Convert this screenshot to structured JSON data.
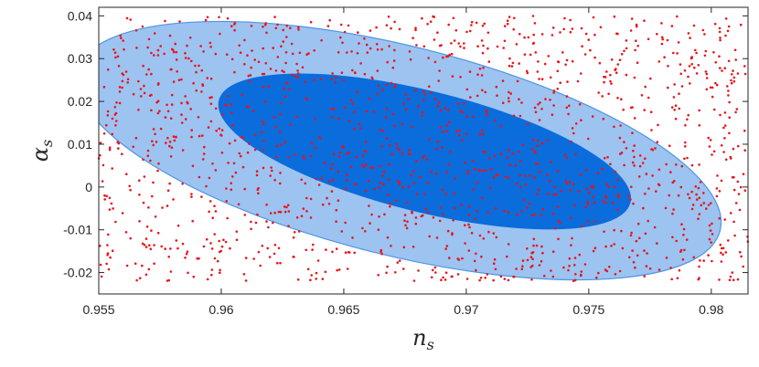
{
  "chart_data": {
    "type": "scatter",
    "title": "",
    "xlabel": "n_s",
    "ylabel": "α_s",
    "xlabel_main": "n",
    "xlabel_sub": "s",
    "ylabel_main": "α",
    "ylabel_sub": "s",
    "xlim": [
      0.955,
      0.9815
    ],
    "ylim": [
      -0.025,
      0.042
    ],
    "xticks": [
      0.955,
      0.96,
      0.965,
      0.97,
      0.975,
      0.98
    ],
    "xtick_labels": [
      "0.955",
      "0.96",
      "0.965",
      "0.97",
      "0.975",
      "0.98"
    ],
    "yticks": [
      -0.02,
      -0.01,
      0,
      0.01,
      0.02,
      0.03,
      0.04
    ],
    "ytick_labels": [
      "-0.02",
      "-0.01",
      "0",
      "0.01",
      "0.02",
      "0.03",
      "0.04"
    ],
    "grid": false,
    "legend": "none",
    "scatter_series": {
      "color": "#e8141b",
      "count": 1500,
      "x_range": [
        0.955,
        0.9815
      ],
      "y_range": [
        -0.022,
        0.04
      ],
      "distribution": "uniform"
    },
    "contours": [
      {
        "level": "outer",
        "center": [
          0.96725,
          0.0085
        ],
        "boundary_x_range": [
          0.955,
          0.9813
        ],
        "boundary_y_range": [
          -0.0218,
          0.0386
        ],
        "orientation": "tilted toward lower-right",
        "fill": "#9dc3f1",
        "edge": "#4f95e1"
      },
      {
        "level": "inner",
        "center": [
          0.9683,
          0.0083
        ],
        "boundary_x_range": [
          0.9598,
          0.9766
        ],
        "boundary_y_range": [
          -0.0098,
          0.0264
        ],
        "orientation": "tilted toward lower-right",
        "fill": "#0b6cdc",
        "edge": "#0b6cdc"
      }
    ]
  }
}
